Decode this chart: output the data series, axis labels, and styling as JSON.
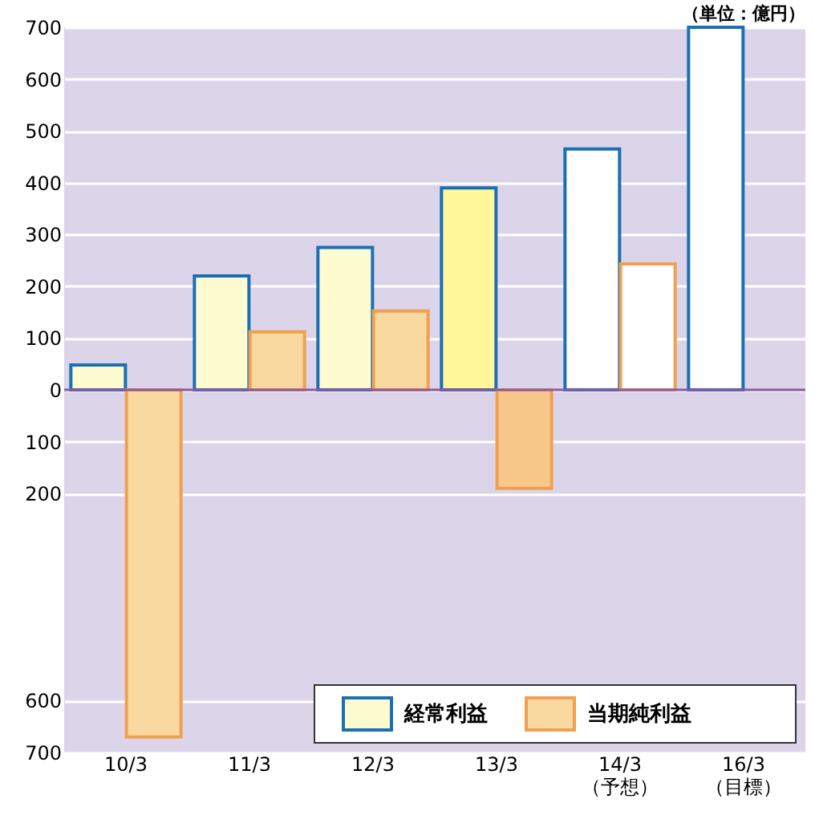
{
  "chart_data": {
    "type": "bar",
    "categories": [
      "10/3",
      "11/3",
      "12/3",
      "13/3",
      "14/3\n（予想）",
      "16/3\n（目標）"
    ],
    "series": [
      {
        "name": "経常利益",
        "color": "#fffbd0",
        "colors": [
          "#fffbd0",
          "#fffbd0",
          "#fffbd0",
          "#fff799",
          "#ffffff",
          "#ffffff"
        ],
        "values": [
          48,
          220,
          275,
          390,
          465,
          700
        ]
      },
      {
        "name": "当期純利益",
        "color": "#fad9a0",
        "colors": [
          "#fad9a0",
          "#fad9a0",
          "#fad9a0",
          "#f8c88a",
          "#ffffff",
          "#ffffff"
        ],
        "values": [
          -670,
          112,
          152,
          -190,
          243,
          null
        ]
      }
    ],
    "ylim": [
      -700,
      700
    ],
    "yticks": [
      700,
      600,
      500,
      400,
      300,
      200,
      100,
      0,
      {
        "value": -100,
        "label": "100"
      },
      {
        "value": -200,
        "label": "200"
      },
      {
        "value": -600,
        "label": "600"
      },
      {
        "value": -700,
        "label": "700"
      }
    ],
    "ref_lines": [
      {
        "axis": "y",
        "value": 0,
        "color": "#8a5aa0"
      }
    ],
    "annotations": [
      "（単位：億円）"
    ],
    "grid": "y",
    "legend": "bottom right"
  }
}
